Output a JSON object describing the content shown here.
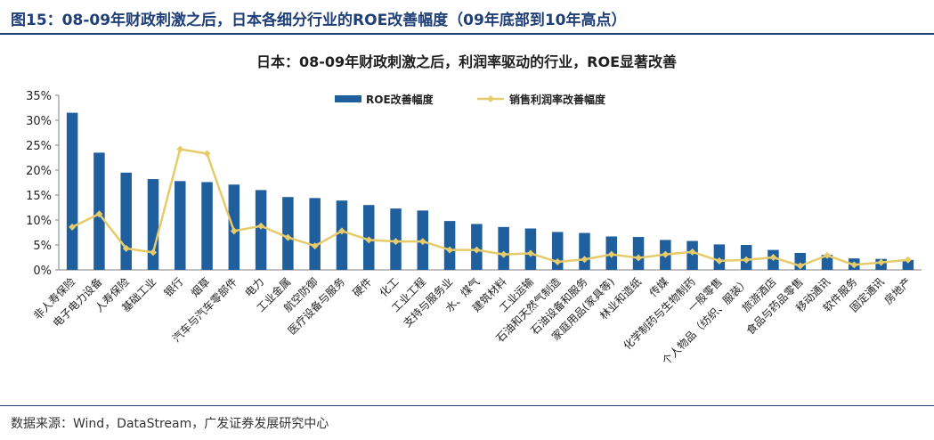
{
  "figure_title": "图15：08-09年财政刺激之后，日本各细分行业的ROE改善幅度（09年底部到10年高点）",
  "source": "数据来源：Wind，DataStream，广发证券发展研究中心",
  "colors": {
    "bar": "#1f5f9e",
    "line": "#e6cb6a",
    "title": "#1f3f77"
  },
  "chart_data": {
    "type": "bar",
    "title": "日本：08-09年财政刺激之后，利润率驱动的行业，ROE显著改善",
    "categories": [
      "非人寿保险",
      "电子电力设备",
      "人寿保险",
      "基础工业",
      "银行",
      "烟草",
      "汽车与汽车零部件",
      "电力",
      "工业金属",
      "航空防御",
      "医疗设备与服务",
      "硬件",
      "化工",
      "工业工程",
      "支持与服务业",
      "水、煤气",
      "建筑材料",
      "工业运输",
      "石油和天然气制造",
      "石油设备和服务",
      "家庭用品(家具等)",
      "林业和造纸",
      "传媒",
      "化学制药与生物制药",
      "一般零售",
      "个人物品（纺织、服装）",
      "旅游酒店",
      "食品与药品零售",
      "移动通讯",
      "软件服务",
      "固定通讯",
      "房地产"
    ],
    "series": [
      {
        "name": "ROE改善幅度",
        "type": "bar",
        "values": [
          31.5,
          23.5,
          19.5,
          18.2,
          17.8,
          17.6,
          17.1,
          16.0,
          14.6,
          14.4,
          13.9,
          13.0,
          12.3,
          11.9,
          9.8,
          9.2,
          8.6,
          8.3,
          7.6,
          7.4,
          6.7,
          6.6,
          6.0,
          5.8,
          5.1,
          5.0,
          4.0,
          3.4,
          3.0,
          2.3,
          2.2,
          2.0
        ]
      },
      {
        "name": "销售利润率改善幅度",
        "type": "line",
        "values": [
          8.6,
          11.2,
          4.3,
          3.5,
          24.2,
          23.3,
          7.8,
          8.8,
          6.5,
          4.8,
          7.8,
          6.0,
          5.7,
          5.7,
          4.0,
          4.0,
          3.1,
          3.3,
          1.6,
          2.1,
          3.1,
          2.4,
          3.1,
          3.6,
          1.8,
          2.0,
          2.5,
          0.8,
          2.9,
          1.0,
          1.5,
          2.0
        ]
      }
    ],
    "ylim": [
      0,
      35
    ],
    "yticks": [
      "0%",
      "5%",
      "10%",
      "15%",
      "20%",
      "25%",
      "30%",
      "35%"
    ],
    "legend_position": "top-center",
    "grid": false
  }
}
